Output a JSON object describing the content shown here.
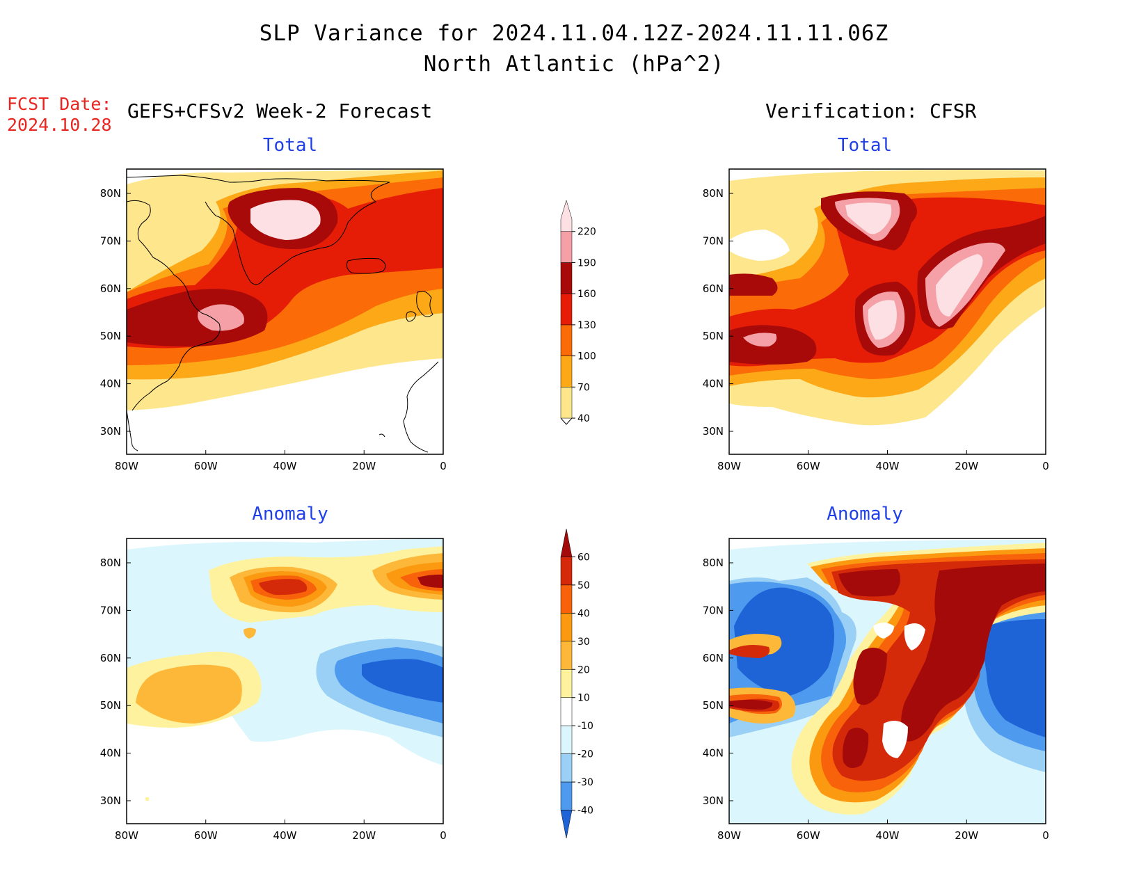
{
  "header": {
    "title_line1": "SLP Variance for 2024.11.04.12Z-2024.11.11.06Z",
    "title_line2": "North Atlantic (hPa^2)",
    "fcst_label": "FCST Date:",
    "fcst_date": "2024.10.28",
    "left_column": "GEFS+CFSv2 Week-2 Forecast",
    "right_column": "Verification: CFSR"
  },
  "panels": {
    "forecast_total_title": "Total",
    "verification_total_title": "Total",
    "forecast_anomaly_title": "Anomaly",
    "verification_anomaly_title": "Anomaly"
  },
  "axes": {
    "lon_labels": [
      "80W",
      "60W",
      "40W",
      "20W",
      "0"
    ],
    "lat_labels": [
      "80N",
      "70N",
      "60N",
      "50N",
      "40N",
      "30N"
    ]
  },
  "colorbars": {
    "total": {
      "levels": [
        "40",
        "70",
        "100",
        "130",
        "160",
        "190",
        "220"
      ],
      "colors": [
        "#fee68c",
        "#fda817",
        "#fb6b07",
        "#e51d07",
        "#a80a0a",
        "#f4a0a6",
        "#fde0e3"
      ]
    },
    "anomaly": {
      "levels": [
        "60",
        "50",
        "40",
        "30",
        "20",
        "10",
        "-10",
        "-20",
        "-30",
        "-40"
      ],
      "colors": [
        "#a50a0a",
        "#d52a0a",
        "#f8620a",
        "#fb9a10",
        "#fdb839",
        "#fef29e",
        "#ffffff",
        "#dcf6fd",
        "#9ad0f6",
        "#4d9aee",
        "#1e64d6"
      ]
    },
    "total_colors_order_note": ""
  },
  "colors": {
    "axes": "#000000",
    "panel_title": "#1f3fe8",
    "fcst": "#e8261f"
  }
}
